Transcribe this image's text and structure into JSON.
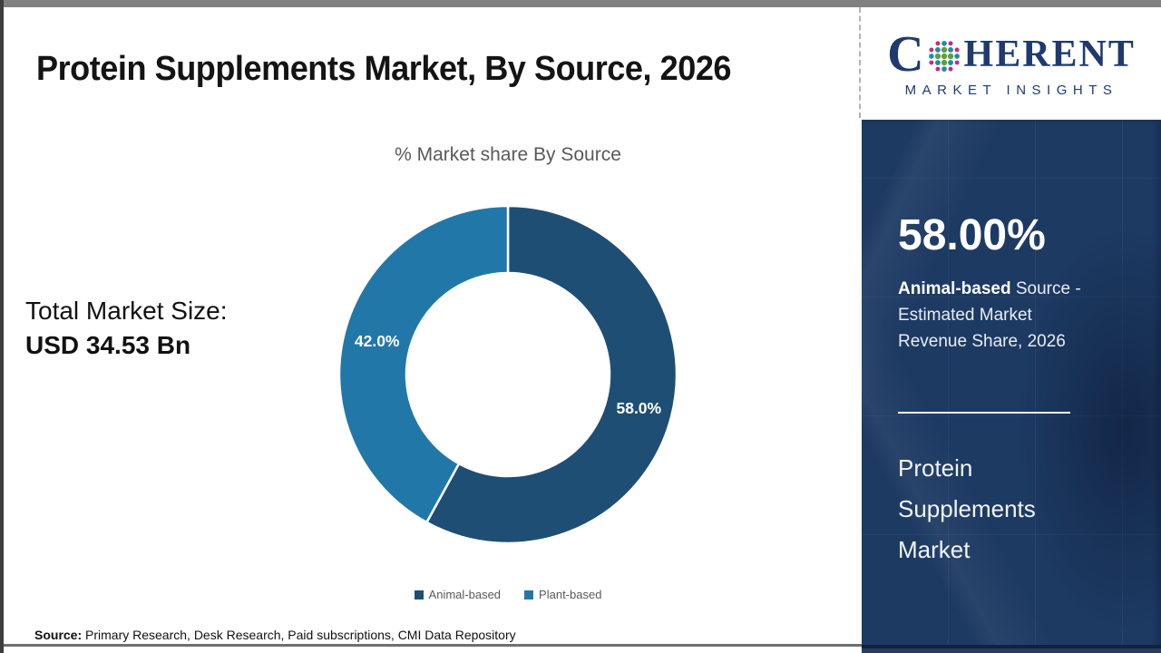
{
  "header": {
    "title": "Protein Supplements Market, By Source, 2026"
  },
  "logo": {
    "word_start": "C",
    "word_end": "HERENT",
    "subtitle": "MARKET INSIGHTS",
    "navy": "#1e3a6e",
    "dot_colors": {
      "green": "#5f9e3e",
      "teal": "#1f8ca6",
      "magenta": "#c22c83"
    }
  },
  "left_panel": {
    "total_label": "Total Market Size:",
    "total_value": "USD 34.53 Bn"
  },
  "chart_data": {
    "type": "pie",
    "donut": true,
    "title": "% Market share By Source",
    "categories": [
      "Animal-based",
      "Plant-based"
    ],
    "values": [
      58.0,
      42.0
    ],
    "data_labels": [
      "58.0%",
      "42.0%"
    ],
    "colors": [
      "#1f4e74",
      "#2178a8"
    ],
    "legend": [
      "Animal-based",
      "Plant-based"
    ],
    "legend_position": "bottom",
    "start_angle": 0,
    "direction": "clockwise",
    "inner_radius_ratio": 0.6
  },
  "sidebar": {
    "background": "#1d3a63",
    "stat_value": "58.00%",
    "stat_bold": "Animal-based",
    "stat_rest": " Source - Estimated Market Revenue Share, 2026",
    "market_lines": [
      "Protein",
      "Supplements",
      "Market"
    ]
  },
  "footer": {
    "source_label": "Source:",
    "source_text": " Primary Research, Desk Research, Paid subscriptions, CMI Data Repository"
  }
}
